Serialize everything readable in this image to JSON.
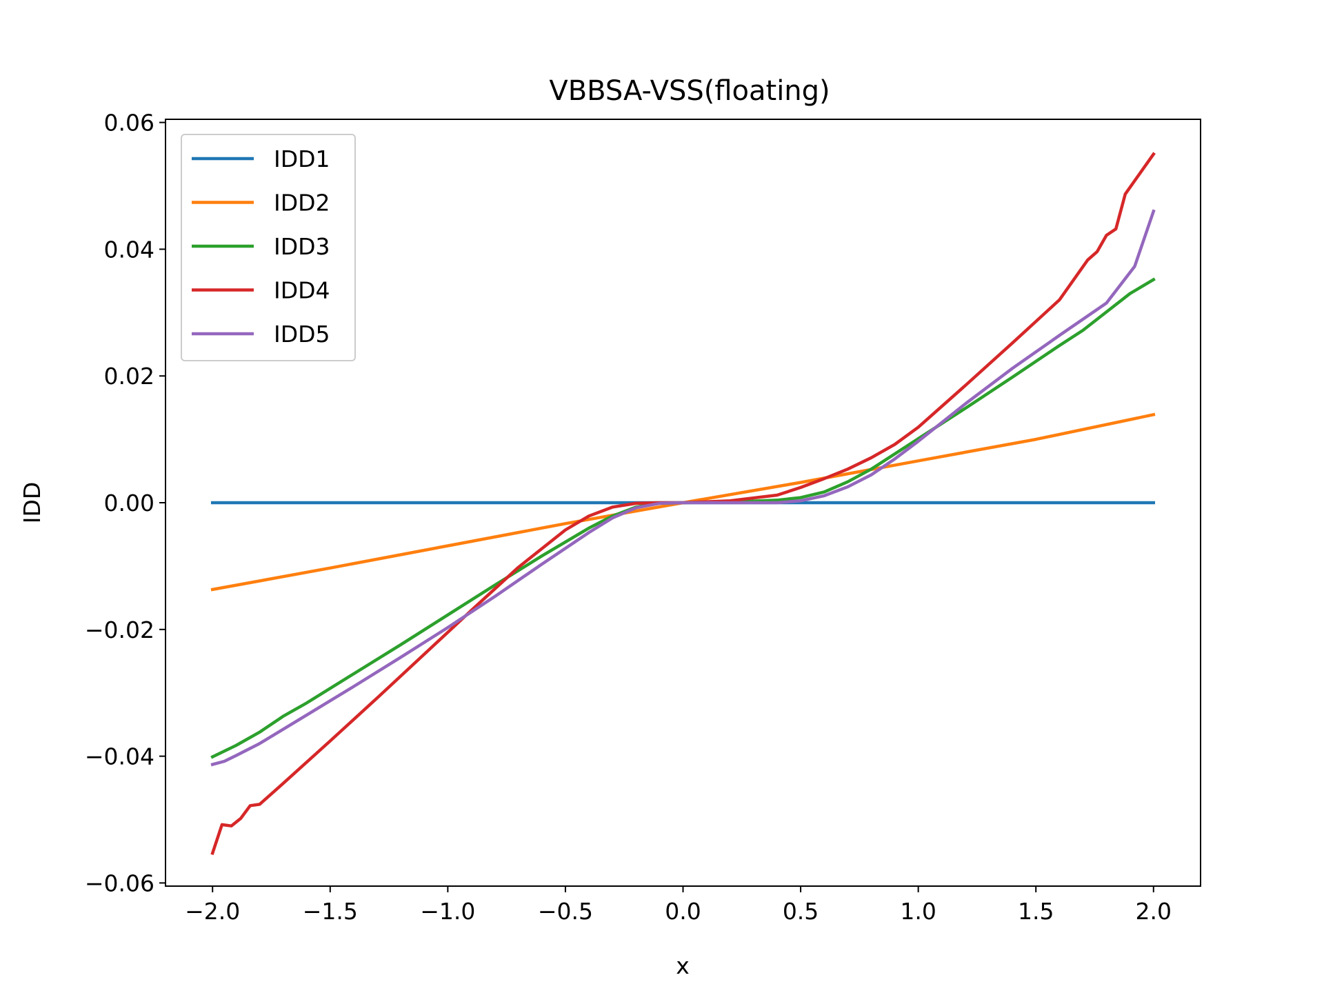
{
  "chart_data": {
    "type": "line",
    "title": "VBBSA-VSS(floating)",
    "xlabel": "x",
    "ylabel": "IDD",
    "xlim": [
      -2.2,
      2.2
    ],
    "ylim": [
      -0.0605,
      0.0605
    ],
    "x_ticks": [
      -2.0,
      -1.5,
      -1.0,
      -0.5,
      0.0,
      0.5,
      1.0,
      1.5,
      2.0
    ],
    "x_tick_labels": [
      "−2.0",
      "−1.5",
      "−1.0",
      "−0.5",
      "0.0",
      "0.5",
      "1.0",
      "1.5",
      "2.0"
    ],
    "y_ticks": [
      -0.06,
      -0.04,
      -0.02,
      0.0,
      0.02,
      0.04,
      0.06
    ],
    "y_tick_labels": [
      "−0.06",
      "−0.04",
      "−0.02",
      "0.00",
      "0.02",
      "0.04",
      "0.06"
    ],
    "legend_position": "upper-left",
    "grid": false,
    "series": [
      {
        "name": "IDD1",
        "color": "#1f77b4",
        "x": [
          -2.0,
          2.0
        ],
        "y": [
          0.0,
          0.0
        ]
      },
      {
        "name": "IDD2",
        "color": "#ff7f0e",
        "x": [
          -2.0,
          -1.5,
          -1.0,
          -0.5,
          0.0,
          0.5,
          1.0,
          1.5,
          2.0
        ],
        "y": [
          -0.0137,
          -0.0103,
          -0.0068,
          -0.0033,
          0.0,
          0.0032,
          0.0066,
          0.01,
          0.0139
        ]
      },
      {
        "name": "IDD3",
        "color": "#2ca02c",
        "x": [
          -2.0,
          -1.9,
          -1.8,
          -1.7,
          -1.6,
          -1.4,
          -1.2,
          -1.0,
          -0.8,
          -0.6,
          -0.4,
          -0.3,
          -0.2,
          -0.1,
          0.0,
          0.2,
          0.4,
          0.5,
          0.6,
          0.7,
          0.8,
          1.0,
          1.2,
          1.4,
          1.6,
          1.7,
          1.8,
          1.9,
          2.0
        ],
        "y": [
          -0.0401,
          -0.0383,
          -0.0362,
          -0.0337,
          -0.0316,
          -0.027,
          -0.0224,
          -0.0177,
          -0.013,
          -0.0084,
          -0.004,
          -0.0021,
          -0.0007,
          -0.0001,
          0.0,
          0.0001,
          0.0004,
          0.0008,
          0.0017,
          0.0033,
          0.0053,
          0.0101,
          0.0149,
          0.0198,
          0.0248,
          0.0272,
          0.0301,
          0.033,
          0.0352
        ]
      },
      {
        "name": "IDD4",
        "color": "#d62728",
        "x": [
          -2.0,
          -1.96,
          -1.92,
          -1.88,
          -1.84,
          -1.8,
          -1.7,
          -1.5,
          -1.3,
          -1.1,
          -0.9,
          -0.7,
          -0.5,
          -0.4,
          -0.3,
          -0.2,
          -0.1,
          0.0,
          0.2,
          0.4,
          0.5,
          0.6,
          0.7,
          0.8,
          0.9,
          1.0,
          1.2,
          1.4,
          1.6,
          1.72,
          1.76,
          1.8,
          1.84,
          1.88,
          2.0
        ],
        "y": [
          -0.0553,
          -0.0508,
          -0.051,
          -0.0498,
          -0.0478,
          -0.0476,
          -0.0443,
          -0.0376,
          -0.0308,
          -0.0239,
          -0.017,
          -0.0102,
          -0.0043,
          -0.0021,
          -0.0007,
          -0.0001,
          0.0,
          0.0,
          0.0003,
          0.0012,
          0.0024,
          0.0038,
          0.0053,
          0.0071,
          0.0092,
          0.0119,
          0.0185,
          0.0252,
          0.032,
          0.0383,
          0.0396,
          0.0422,
          0.0432,
          0.0487,
          0.055
        ]
      },
      {
        "name": "IDD5",
        "color": "#9467bd",
        "x": [
          -2.0,
          -1.95,
          -1.9,
          -1.8,
          -1.6,
          -1.4,
          -1.2,
          -1.0,
          -0.8,
          -0.6,
          -0.4,
          -0.3,
          -0.2,
          -0.1,
          0.0,
          0.2,
          0.4,
          0.5,
          0.6,
          0.7,
          0.8,
          0.9,
          1.0,
          1.2,
          1.4,
          1.6,
          1.8,
          1.92,
          2.0
        ],
        "y": [
          -0.0413,
          -0.0408,
          -0.0399,
          -0.038,
          -0.0335,
          -0.029,
          -0.0244,
          -0.0197,
          -0.0148,
          -0.0097,
          -0.0047,
          -0.0024,
          -0.0008,
          -0.0001,
          0.0,
          0.0,
          0.0,
          0.0003,
          0.0011,
          0.0025,
          0.0044,
          0.0069,
          0.0097,
          0.0156,
          0.0212,
          0.0264,
          0.0315,
          0.0373,
          0.046
        ]
      }
    ]
  }
}
